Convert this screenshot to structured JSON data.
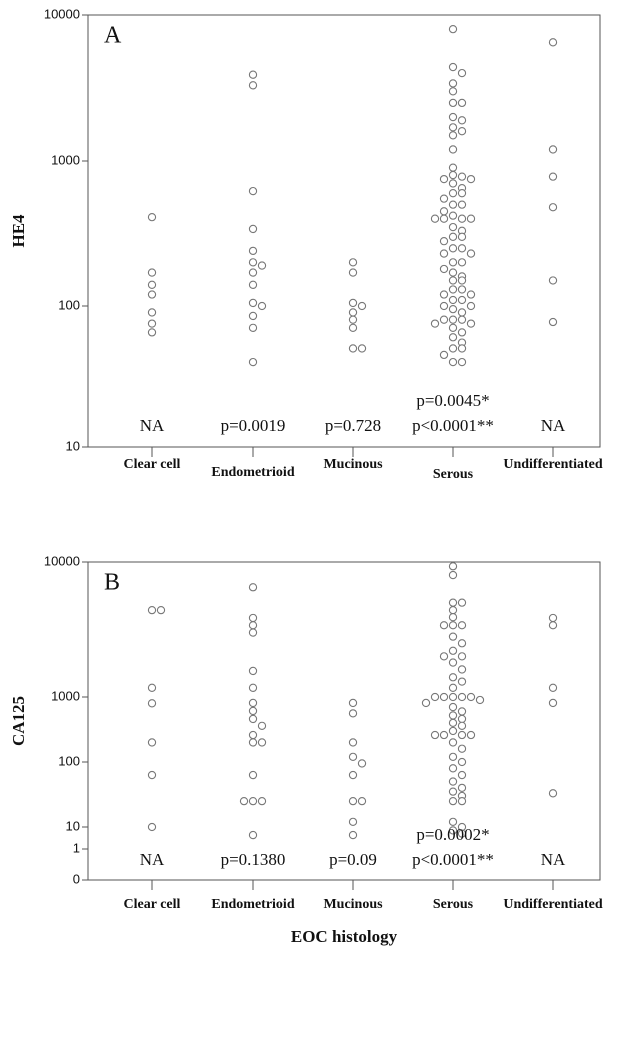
{
  "chart_data": [
    {
      "type": "dot",
      "panel_label": "A",
      "y_label": "HE4",
      "color": "#777777",
      "log": true,
      "categories": [
        "Clear cell",
        "Endometrioid",
        "Mucinous",
        "Serous",
        "Undifferentiated"
      ],
      "values": [
        [
          410,
          170,
          140,
          120,
          90,
          75,
          65
        ],
        [
          3900,
          3300,
          620,
          340,
          240,
          200,
          190,
          170,
          140,
          105,
          100,
          85,
          70,
          40
        ],
        [
          200,
          170,
          105,
          100,
          90,
          80,
          70,
          50,
          50
        ],
        [
          8000,
          4400,
          4000,
          3400,
          3000,
          2500,
          2500,
          2000,
          1900,
          1700,
          1600,
          1500,
          1200,
          900,
          800,
          780,
          750,
          750,
          700,
          650,
          600,
          600,
          550,
          500,
          500,
          450,
          420,
          400,
          400,
          400,
          400,
          350,
          330,
          300,
          300,
          280,
          250,
          250,
          230,
          230,
          200,
          200,
          180,
          170,
          160,
          150,
          150,
          130,
          130,
          120,
          120,
          110,
          110,
          100,
          100,
          95,
          90,
          80,
          80,
          80,
          75,
          75,
          70,
          65,
          60,
          55,
          50,
          50,
          45,
          40,
          40
        ],
        [
          6500,
          1200,
          780,
          480,
          150,
          77
        ]
      ],
      "annotations": [
        [
          "NA"
        ],
        [
          "p=0.0019"
        ],
        [
          "p=0.728"
        ],
        [
          "p=0.0045*",
          "p<0.0001**"
        ],
        [
          "NA"
        ]
      ],
      "ylim": [
        10,
        10000
      ],
      "yticks": [
        10,
        100,
        1000,
        10000
      ]
    },
    {
      "type": "dot",
      "panel_label": "B",
      "y_label": "CA125",
      "x_label": "EOC histology",
      "color": "#777777",
      "log": true,
      "categories": [
        "Clear cell",
        "Endometrioid",
        "Mucinous",
        "Serous",
        "Undifferentiated"
      ],
      "values": [
        [
          4400,
          4400,
          1170,
          800,
          200,
          63,
          10
        ],
        [
          6500,
          3850,
          3400,
          3000,
          1560,
          1170,
          810,
          610,
          460,
          360,
          260,
          200,
          200,
          63,
          25,
          25,
          25,
          4.3
        ],
        [
          810,
          560,
          200,
          120,
          95,
          63,
          25,
          25,
          12,
          4.3
        ],
        [
          9300,
          8000,
          5000,
          5000,
          4400,
          3900,
          3400,
          3400,
          3400,
          2800,
          2500,
          2200,
          2000,
          2000,
          1800,
          1600,
          1400,
          1300,
          1170,
          1000,
          1000,
          1000,
          1000,
          1000,
          900,
          810,
          700,
          600,
          520,
          460,
          400,
          360,
          300,
          260,
          260,
          260,
          260,
          200,
          160,
          120,
          100,
          80,
          63,
          50,
          40,
          35,
          30,
          25,
          25,
          12,
          10,
          7,
          5
        ],
        [
          3850,
          3400,
          1170,
          810,
          33
        ]
      ],
      "annotations": [
        [
          "NA"
        ],
        [
          "p=0.1380"
        ],
        [
          "p=0.09"
        ],
        [
          "p=0.0002*",
          "p<0.0001**"
        ],
        [
          "NA"
        ]
      ],
      "ylim": [
        0,
        10000
      ],
      "yticks": [
        0,
        1,
        10,
        100,
        1000,
        10000
      ]
    }
  ]
}
